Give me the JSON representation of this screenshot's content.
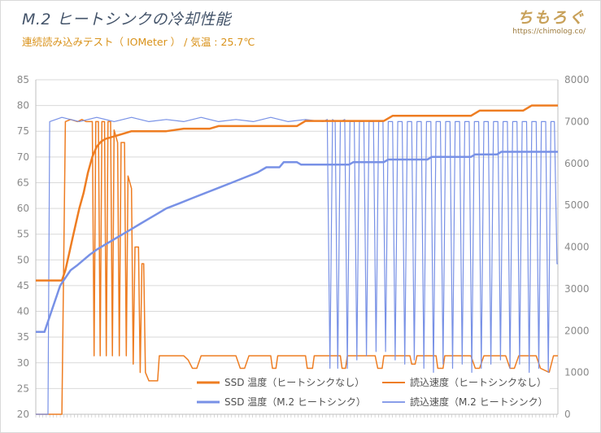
{
  "header": {
    "title": "M.2 ヒートシンクの冷却性能",
    "subtitle": "連続読み込みテスト（ IOMeter ） /  気温 : 25.7℃",
    "brand": "ちもろぐ",
    "brand_url": "https://chimolog.co/"
  },
  "chart_data": {
    "type": "line",
    "title": "M.2 ヒートシンクの冷却性能",
    "subtitle": "連続読み込みテスト（ IOMeter ） /  気温 : 25.7℃",
    "y_left": {
      "label": "",
      "range": [
        20,
        85
      ],
      "ticks": [
        "20",
        "25",
        "30",
        "35",
        "40",
        "45",
        "50",
        "55",
        "60",
        "65",
        "70",
        "75",
        "80",
        "85"
      ]
    },
    "y_right": {
      "label": "",
      "range": [
        0,
        8000
      ],
      "ticks": [
        "0",
        "1000",
        "2000",
        "3000",
        "4000",
        "5000",
        "6000",
        "7000",
        "8000"
      ]
    },
    "x": {
      "range": [
        0,
        600
      ]
    },
    "grid": "horizontal",
    "legend_position": "bottom-right",
    "colors": {
      "orange": "#ee7d22",
      "blue": "#7891e6",
      "grid": "#d9d9d9"
    },
    "series": [
      {
        "name": "SSD 温度（ヒートシンクなし）",
        "axis": "left",
        "color": "#ee7d22",
        "width": 2.5,
        "points": [
          [
            0,
            46
          ],
          [
            30,
            46
          ],
          [
            34,
            48
          ],
          [
            38,
            51
          ],
          [
            42,
            54
          ],
          [
            46,
            57
          ],
          [
            50,
            60
          ],
          [
            55,
            63
          ],
          [
            60,
            67
          ],
          [
            65,
            70
          ],
          [
            70,
            72
          ],
          [
            75,
            73
          ],
          [
            80,
            73.5
          ],
          [
            90,
            74
          ],
          [
            100,
            74.5
          ],
          [
            110,
            75
          ],
          [
            150,
            75
          ],
          [
            170,
            75.5
          ],
          [
            200,
            75.5
          ],
          [
            210,
            76
          ],
          [
            300,
            76
          ],
          [
            310,
            77
          ],
          [
            400,
            77
          ],
          [
            410,
            78
          ],
          [
            500,
            78
          ],
          [
            510,
            79
          ],
          [
            560,
            79
          ],
          [
            570,
            80
          ],
          [
            600,
            80
          ]
        ]
      },
      {
        "name": "読込速度（ヒートシンクなし）",
        "axis": "right",
        "color": "#ee7d22",
        "width": 1.5,
        "points": [
          [
            0,
            0
          ],
          [
            30,
            0
          ],
          [
            34,
            7000
          ],
          [
            40,
            7050
          ],
          [
            48,
            7000
          ],
          [
            53,
            7050
          ],
          [
            58,
            7000
          ],
          [
            65,
            7000
          ],
          [
            67,
            1400
          ],
          [
            69,
            7000
          ],
          [
            72,
            7000
          ],
          [
            74,
            1400
          ],
          [
            76,
            7000
          ],
          [
            79,
            7000
          ],
          [
            81,
            1400
          ],
          [
            83,
            7000
          ],
          [
            86,
            7000
          ],
          [
            88,
            1400
          ],
          [
            90,
            6800
          ],
          [
            94,
            6500
          ],
          [
            96,
            1400
          ],
          [
            98,
            6500
          ],
          [
            102,
            6500
          ],
          [
            104,
            1400
          ],
          [
            106,
            5700
          ],
          [
            110,
            5400
          ],
          [
            112,
            1200
          ],
          [
            114,
            4000
          ],
          [
            118,
            4000
          ],
          [
            120,
            1000
          ],
          [
            122,
            3600
          ],
          [
            124,
            3600
          ],
          [
            126,
            1000
          ],
          [
            130,
            800
          ],
          [
            140,
            800
          ],
          [
            142,
            1400
          ],
          [
            170,
            1400
          ],
          [
            175,
            1300
          ],
          [
            180,
            1100
          ],
          [
            185,
            1100
          ],
          [
            190,
            1400
          ],
          [
            230,
            1400
          ],
          [
            235,
            1100
          ],
          [
            240,
            1100
          ],
          [
            245,
            1400
          ],
          [
            270,
            1400
          ],
          [
            272,
            1100
          ],
          [
            276,
            1100
          ],
          [
            278,
            1400
          ],
          [
            310,
            1400
          ],
          [
            312,
            1100
          ],
          [
            318,
            1100
          ],
          [
            320,
            1400
          ],
          [
            350,
            1400
          ],
          [
            352,
            1100
          ],
          [
            356,
            1100
          ],
          [
            358,
            1400
          ],
          [
            390,
            1400
          ],
          [
            393,
            1100
          ],
          [
            398,
            1100
          ],
          [
            400,
            1400
          ],
          [
            430,
            1400
          ],
          [
            432,
            1200
          ],
          [
            436,
            1200
          ],
          [
            438,
            1400
          ],
          [
            460,
            1400
          ],
          [
            462,
            1100
          ],
          [
            468,
            1100
          ],
          [
            470,
            1400
          ],
          [
            500,
            1400
          ],
          [
            505,
            1100
          ],
          [
            510,
            1100
          ],
          [
            515,
            1400
          ],
          [
            540,
            1400
          ],
          [
            545,
            1100
          ],
          [
            550,
            1100
          ],
          [
            555,
            1400
          ],
          [
            575,
            1400
          ],
          [
            580,
            1100
          ],
          [
            590,
            1000
          ],
          [
            595,
            1400
          ],
          [
            600,
            1400
          ]
        ]
      },
      {
        "name": "SSD 温度（M.2 ヒートシンク）",
        "axis": "left",
        "color": "#7891e6",
        "width": 2.5,
        "points": [
          [
            0,
            36
          ],
          [
            10,
            36
          ],
          [
            12,
            37
          ],
          [
            16,
            39
          ],
          [
            20,
            41
          ],
          [
            24,
            43
          ],
          [
            28,
            45
          ],
          [
            32,
            46
          ],
          [
            36,
            47
          ],
          [
            40,
            48
          ],
          [
            48,
            49
          ],
          [
            55,
            50
          ],
          [
            62,
            51
          ],
          [
            70,
            52
          ],
          [
            80,
            53
          ],
          [
            90,
            54
          ],
          [
            100,
            55
          ],
          [
            110,
            56
          ],
          [
            120,
            57
          ],
          [
            130,
            58
          ],
          [
            140,
            59
          ],
          [
            150,
            60
          ],
          [
            165,
            61
          ],
          [
            180,
            62
          ],
          [
            195,
            63
          ],
          [
            210,
            64
          ],
          [
            225,
            65
          ],
          [
            240,
            66
          ],
          [
            255,
            67
          ],
          [
            265,
            68
          ],
          [
            280,
            68
          ],
          [
            285,
            69
          ],
          [
            300,
            69
          ],
          [
            305,
            68.5
          ],
          [
            320,
            68.5
          ],
          [
            360,
            68.5
          ],
          [
            365,
            69
          ],
          [
            400,
            69
          ],
          [
            405,
            69.5
          ],
          [
            450,
            69.5
          ],
          [
            455,
            70
          ],
          [
            500,
            70
          ],
          [
            505,
            70.5
          ],
          [
            530,
            70.5
          ],
          [
            535,
            71
          ],
          [
            580,
            71
          ],
          [
            585,
            71
          ],
          [
            600,
            71
          ]
        ]
      },
      {
        "name": "読込速度（M.2 ヒートシンク）",
        "axis": "right",
        "color": "#7891e6",
        "width": 1.2,
        "points": [
          [
            0,
            0
          ],
          [
            14,
            0
          ],
          [
            16,
            7000
          ],
          [
            30,
            7100
          ],
          [
            50,
            7000
          ],
          [
            70,
            7100
          ],
          [
            90,
            7000
          ],
          [
            110,
            7100
          ],
          [
            130,
            7000
          ],
          [
            150,
            7050
          ],
          [
            170,
            7000
          ],
          [
            190,
            7100
          ],
          [
            210,
            7000
          ],
          [
            230,
            7050
          ],
          [
            250,
            7000
          ],
          [
            270,
            7100
          ],
          [
            290,
            7000
          ],
          [
            310,
            7050
          ],
          [
            330,
            7000
          ],
          [
            335,
            7050
          ],
          [
            338,
            1100
          ],
          [
            341,
            7050
          ],
          [
            344,
            7000
          ],
          [
            347,
            1100
          ],
          [
            350,
            7000
          ],
          [
            355,
            7050
          ],
          [
            358,
            1100
          ],
          [
            361,
            7000
          ],
          [
            366,
            7000
          ],
          [
            369,
            1300
          ],
          [
            372,
            7000
          ],
          [
            377,
            7000
          ],
          [
            380,
            1400
          ],
          [
            383,
            7000
          ],
          [
            388,
            7000
          ],
          [
            391,
            1500
          ],
          [
            394,
            7000
          ],
          [
            399,
            7000
          ],
          [
            402,
            1500
          ],
          [
            405,
            7000
          ],
          [
            410,
            7000
          ],
          [
            413,
            1300
          ],
          [
            416,
            7000
          ],
          [
            421,
            7000
          ],
          [
            424,
            1200
          ],
          [
            427,
            7000
          ],
          [
            432,
            7000
          ],
          [
            435,
            1300
          ],
          [
            438,
            7000
          ],
          [
            443,
            7000
          ],
          [
            446,
            1100
          ],
          [
            449,
            7000
          ],
          [
            454,
            7000
          ],
          [
            457,
            1000
          ],
          [
            460,
            7000
          ],
          [
            465,
            7000
          ],
          [
            468,
            1200
          ],
          [
            471,
            7000
          ],
          [
            476,
            7000
          ],
          [
            479,
            1100
          ],
          [
            482,
            7000
          ],
          [
            487,
            7000
          ],
          [
            490,
            1200
          ],
          [
            493,
            7000
          ],
          [
            498,
            7000
          ],
          [
            501,
            1000
          ],
          [
            504,
            7000
          ],
          [
            509,
            7000
          ],
          [
            512,
            1100
          ],
          [
            515,
            7000
          ],
          [
            520,
            7000
          ],
          [
            523,
            1200
          ],
          [
            526,
            7000
          ],
          [
            531,
            7000
          ],
          [
            534,
            1300
          ],
          [
            537,
            7000
          ],
          [
            542,
            7000
          ],
          [
            545,
            1100
          ],
          [
            548,
            7000
          ],
          [
            553,
            7000
          ],
          [
            556,
            1200
          ],
          [
            559,
            7000
          ],
          [
            564,
            7000
          ],
          [
            567,
            1000
          ],
          [
            570,
            7000
          ],
          [
            575,
            7000
          ],
          [
            578,
            1100
          ],
          [
            581,
            7000
          ],
          [
            586,
            7000
          ],
          [
            589,
            1000
          ],
          [
            592,
            7000
          ],
          [
            596,
            7000
          ],
          [
            599,
            3600
          ],
          [
            600,
            3600
          ]
        ]
      }
    ]
  }
}
